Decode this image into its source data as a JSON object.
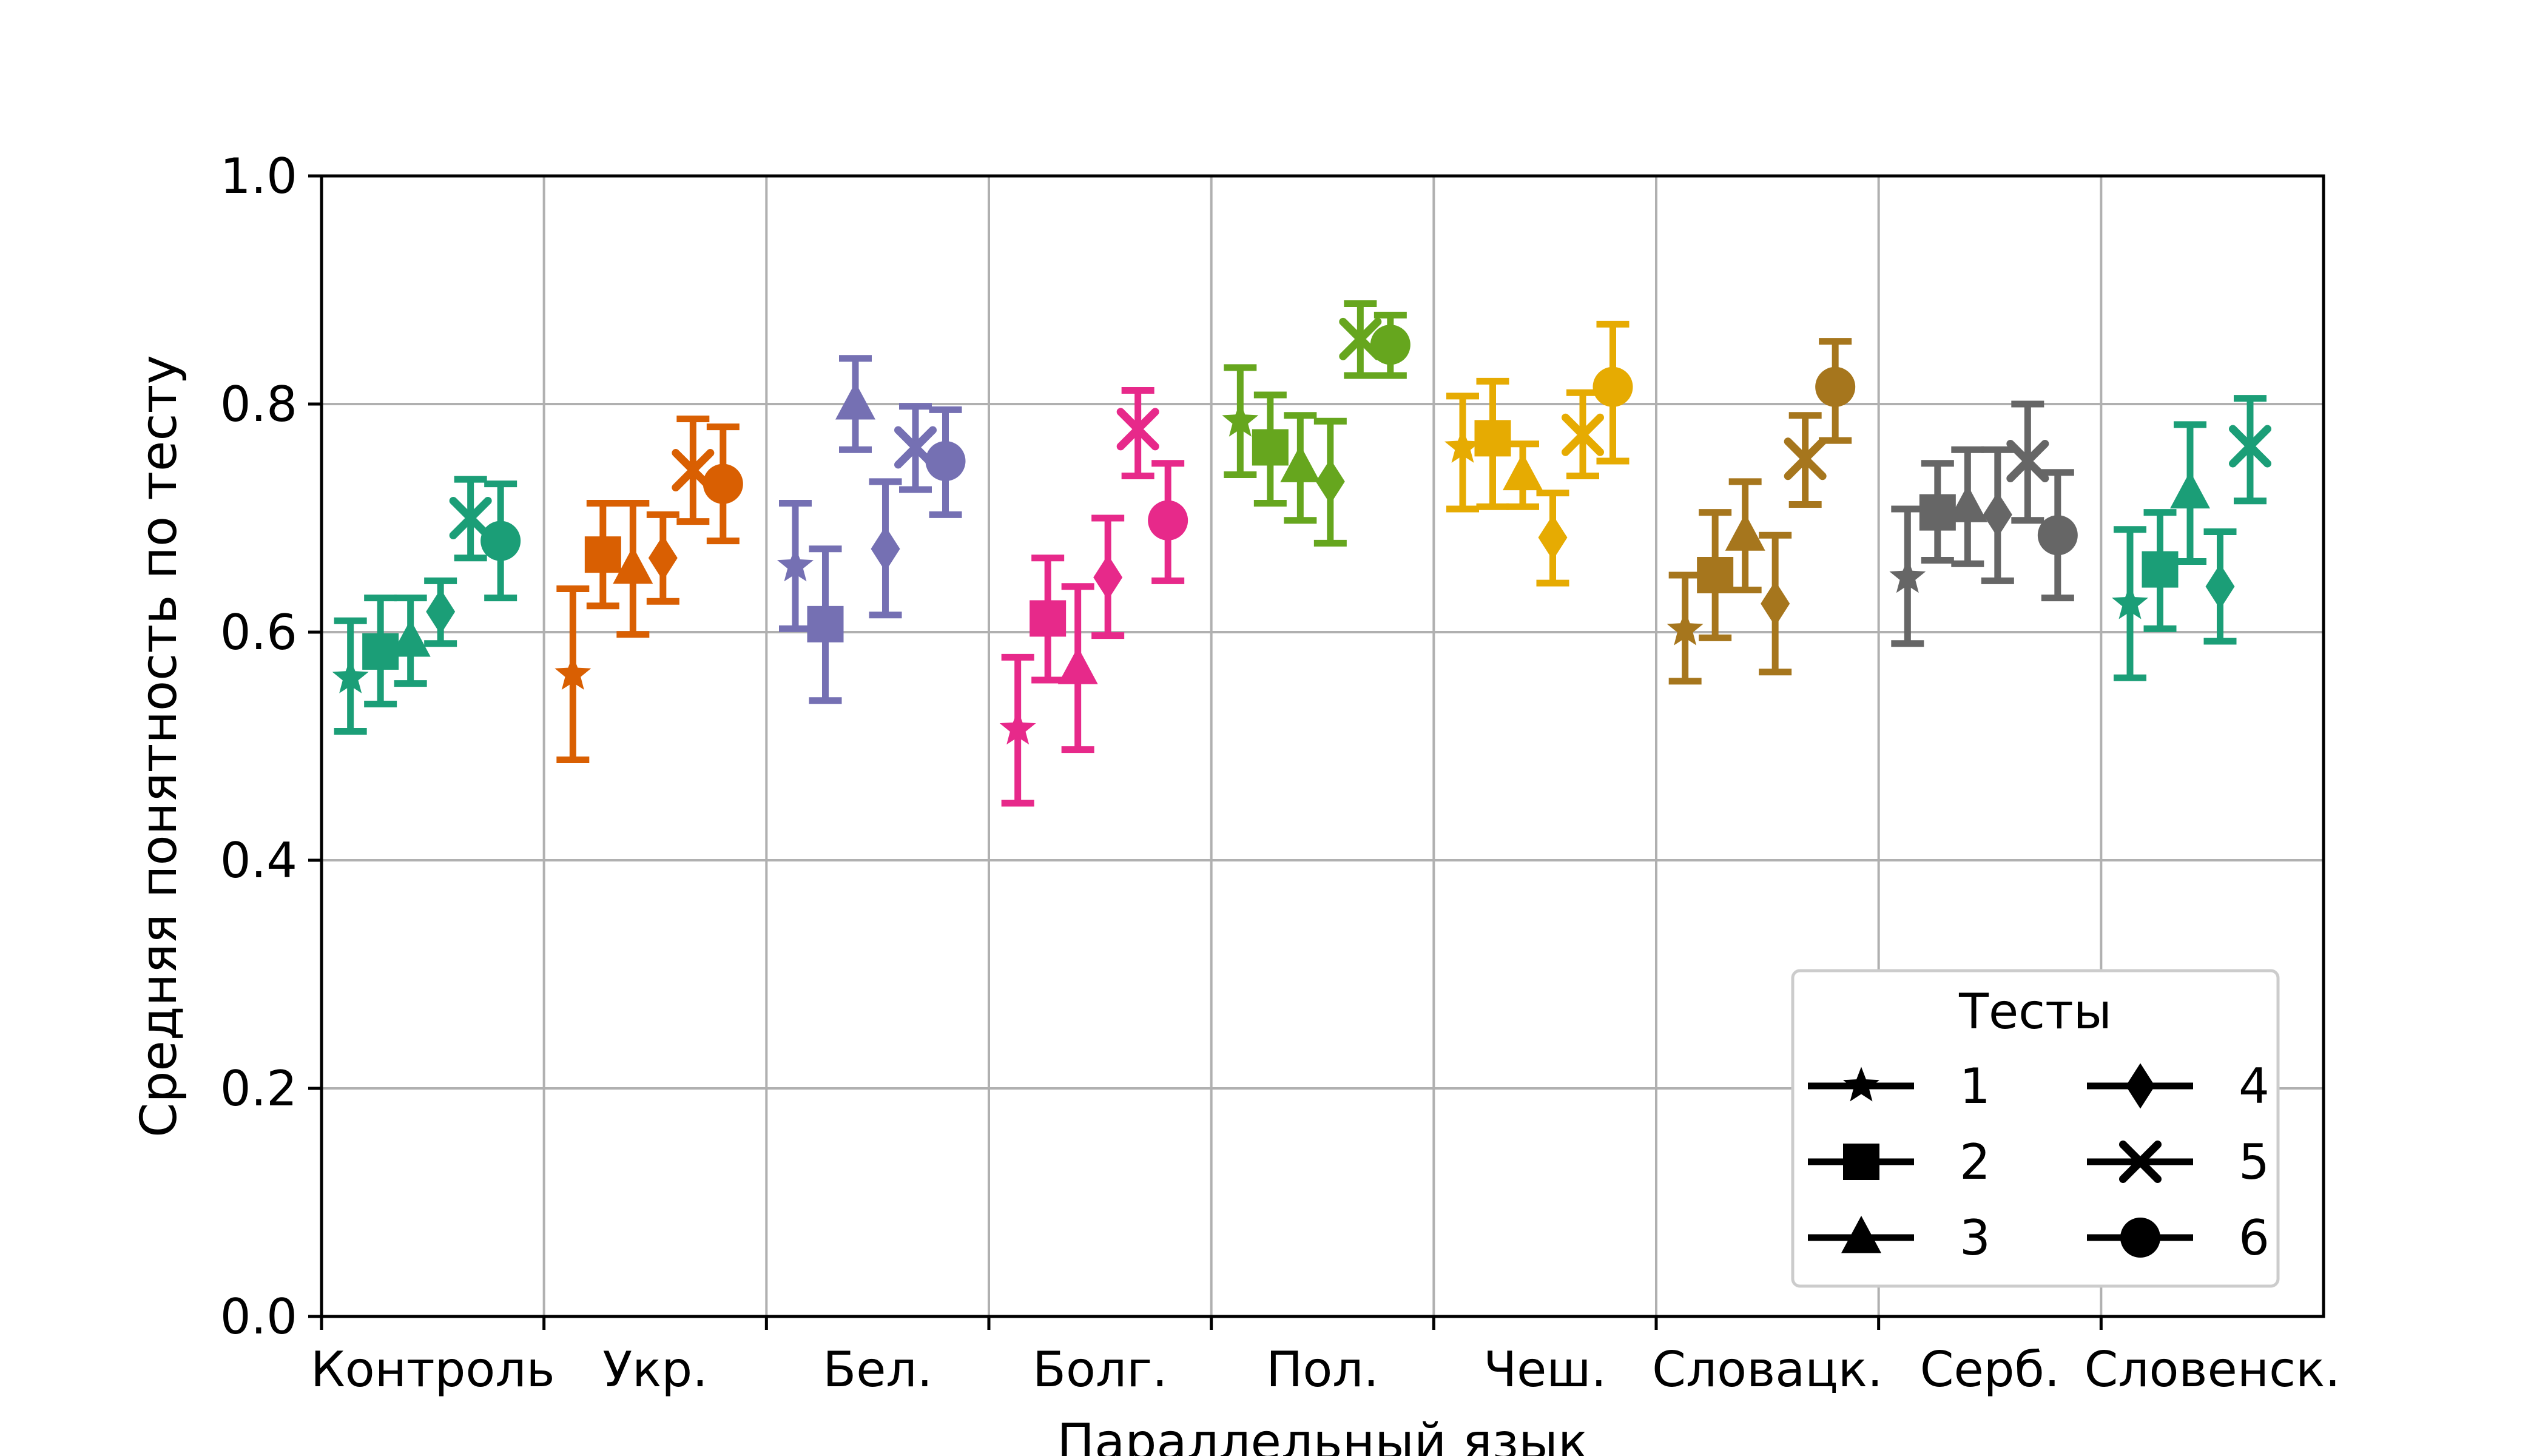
{
  "chart_data": {
    "type": "scatter",
    "title": "",
    "xlabel": "Параллельный язык",
    "ylabel": "Средняя понятность по тесту",
    "ylim": [
      0.0,
      1.0
    ],
    "yticks": [
      "0.0",
      "0.2",
      "0.4",
      "0.6",
      "0.8",
      "1.0"
    ],
    "grid": true,
    "categories": [
      "Контроль",
      "Укр.",
      "Бел.",
      "Болг.",
      "Пол.",
      "Чеш.",
      "Словацк.",
      "Серб.",
      "Словенск."
    ],
    "category_colors": [
      "#1b9e77",
      "#d95f02",
      "#7570b3",
      "#e7298a",
      "#66a61e",
      "#e6ab02",
      "#a6761d",
      "#666666",
      "#1b9e77"
    ],
    "legend": {
      "title": "Тесты",
      "position": "lower-right",
      "entries": [
        {
          "label": "1",
          "marker": "star"
        },
        {
          "label": "2",
          "marker": "square"
        },
        {
          "label": "3",
          "marker": "triangle"
        },
        {
          "label": "4",
          "marker": "diamond"
        },
        {
          "label": "5",
          "marker": "x"
        },
        {
          "label": "6",
          "marker": "circle"
        }
      ]
    },
    "series": [
      {
        "category": "Контроль",
        "points": [
          {
            "test": "1",
            "y": 0.56,
            "low": 0.513,
            "high": 0.61
          },
          {
            "test": "2",
            "y": 0.583,
            "low": 0.537,
            "high": 0.63
          },
          {
            "test": "3",
            "y": 0.592,
            "low": 0.555,
            "high": 0.63
          },
          {
            "test": "4",
            "y": 0.618,
            "low": 0.59,
            "high": 0.645
          },
          {
            "test": "5",
            "y": 0.7,
            "low": 0.665,
            "high": 0.734
          },
          {
            "test": "6",
            "y": 0.68,
            "low": 0.63,
            "high": 0.73
          }
        ]
      },
      {
        "category": "Укр.",
        "points": [
          {
            "test": "1",
            "y": 0.563,
            "low": 0.488,
            "high": 0.638
          },
          {
            "test": "2",
            "y": 0.668,
            "low": 0.623,
            "high": 0.713
          },
          {
            "test": "3",
            "y": 0.656,
            "low": 0.598,
            "high": 0.713
          },
          {
            "test": "4",
            "y": 0.665,
            "low": 0.627,
            "high": 0.703
          },
          {
            "test": "5",
            "y": 0.742,
            "low": 0.697,
            "high": 0.787
          },
          {
            "test": "6",
            "y": 0.73,
            "low": 0.68,
            "high": 0.78
          }
        ]
      },
      {
        "category": "Бел.",
        "points": [
          {
            "test": "1",
            "y": 0.658,
            "low": 0.603,
            "high": 0.713
          },
          {
            "test": "2",
            "y": 0.607,
            "low": 0.54,
            "high": 0.673
          },
          {
            "test": "3",
            "y": 0.8,
            "low": 0.76,
            "high": 0.84
          },
          {
            "test": "4",
            "y": 0.673,
            "low": 0.615,
            "high": 0.732
          },
          {
            "test": "5",
            "y": 0.762,
            "low": 0.725,
            "high": 0.798
          },
          {
            "test": "6",
            "y": 0.75,
            "low": 0.703,
            "high": 0.795
          }
        ]
      },
      {
        "category": "Болг.",
        "points": [
          {
            "test": "1",
            "y": 0.515,
            "low": 0.45,
            "high": 0.578
          },
          {
            "test": "2",
            "y": 0.612,
            "low": 0.558,
            "high": 0.665
          },
          {
            "test": "3",
            "y": 0.568,
            "low": 0.497,
            "high": 0.64
          },
          {
            "test": "4",
            "y": 0.648,
            "low": 0.597,
            "high": 0.7
          },
          {
            "test": "5",
            "y": 0.778,
            "low": 0.737,
            "high": 0.812
          },
          {
            "test": "6",
            "y": 0.698,
            "low": 0.645,
            "high": 0.748
          }
        ]
      },
      {
        "category": "Пол.",
        "points": [
          {
            "test": "1",
            "y": 0.785,
            "low": 0.738,
            "high": 0.832
          },
          {
            "test": "2",
            "y": 0.762,
            "low": 0.713,
            "high": 0.808
          },
          {
            "test": "3",
            "y": 0.745,
            "low": 0.698,
            "high": 0.79
          },
          {
            "test": "4",
            "y": 0.732,
            "low": 0.678,
            "high": 0.785
          },
          {
            "test": "5",
            "y": 0.857,
            "low": 0.825,
            "high": 0.888
          },
          {
            "test": "6",
            "y": 0.852,
            "low": 0.825,
            "high": 0.878
          }
        ]
      },
      {
        "category": "Чеш.",
        "points": [
          {
            "test": "1",
            "y": 0.762,
            "low": 0.708,
            "high": 0.807
          },
          {
            "test": "2",
            "y": 0.77,
            "low": 0.71,
            "high": 0.82
          },
          {
            "test": "3",
            "y": 0.738,
            "low": 0.71,
            "high": 0.765
          },
          {
            "test": "4",
            "y": 0.683,
            "low": 0.643,
            "high": 0.722
          },
          {
            "test": "5",
            "y": 0.773,
            "low": 0.737,
            "high": 0.81
          },
          {
            "test": "6",
            "y": 0.815,
            "low": 0.75,
            "high": 0.87
          }
        ]
      },
      {
        "category": "Словацк.",
        "points": [
          {
            "test": "1",
            "y": 0.602,
            "low": 0.557,
            "high": 0.65
          },
          {
            "test": "2",
            "y": 0.65,
            "low": 0.595,
            "high": 0.705
          },
          {
            "test": "3",
            "y": 0.685,
            "low": 0.637,
            "high": 0.732
          },
          {
            "test": "4",
            "y": 0.625,
            "low": 0.565,
            "high": 0.685
          },
          {
            "test": "5",
            "y": 0.752,
            "low": 0.712,
            "high": 0.79
          },
          {
            "test": "6",
            "y": 0.815,
            "low": 0.768,
            "high": 0.855
          }
        ]
      },
      {
        "category": "Серб.",
        "points": [
          {
            "test": "1",
            "y": 0.648,
            "low": 0.59,
            "high": 0.708
          },
          {
            "test": "2",
            "y": 0.705,
            "low": 0.663,
            "high": 0.748
          },
          {
            "test": "3",
            "y": 0.71,
            "low": 0.66,
            "high": 0.76
          },
          {
            "test": "4",
            "y": 0.703,
            "low": 0.645,
            "high": 0.76
          },
          {
            "test": "5",
            "y": 0.75,
            "low": 0.698,
            "high": 0.8
          },
          {
            "test": "6",
            "y": 0.685,
            "low": 0.63,
            "high": 0.74
          }
        ]
      },
      {
        "category": "Словенск.",
        "points": [
          {
            "test": "1",
            "y": 0.625,
            "low": 0.56,
            "high": 0.69
          },
          {
            "test": "2",
            "y": 0.655,
            "low": 0.603,
            "high": 0.705
          },
          {
            "test": "3",
            "y": 0.722,
            "low": 0.662,
            "high": 0.782
          },
          {
            "test": "4",
            "y": 0.64,
            "low": 0.592,
            "high": 0.688
          },
          {
            "test": "5",
            "y": 0.763,
            "low": 0.715,
            "high": 0.805
          }
        ]
      }
    ]
  }
}
